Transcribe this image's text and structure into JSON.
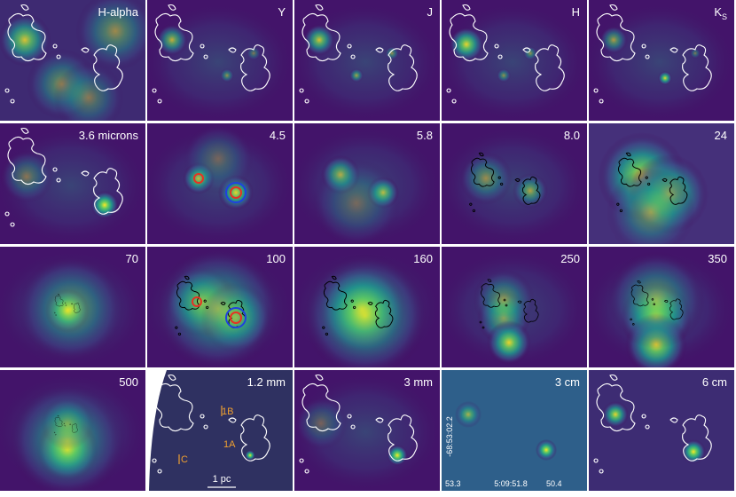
{
  "panels": [
    {
      "label": "H-alpha"
    },
    {
      "label": "Y"
    },
    {
      "label": "J"
    },
    {
      "label": "H"
    },
    {
      "label": "K",
      "subscript": "S"
    },
    {
      "label": "3.6 microns"
    },
    {
      "label": "4.5"
    },
    {
      "label": "5.8"
    },
    {
      "label": "8.0"
    },
    {
      "label": "24"
    },
    {
      "label": "70"
    },
    {
      "label": "100"
    },
    {
      "label": "160"
    },
    {
      "label": "250"
    },
    {
      "label": "350"
    },
    {
      "label": "500"
    },
    {
      "label": "1.2 mm",
      "annotations": [
        "1B",
        "1A",
        "C",
        "1 pc"
      ]
    },
    {
      "label": "3 mm"
    },
    {
      "label": "3 cm",
      "annotations": [
        "-68:53:02.2",
        "53.3",
        "5:09:51.8",
        "50.4"
      ]
    },
    {
      "label": "6 cm"
    }
  ]
}
